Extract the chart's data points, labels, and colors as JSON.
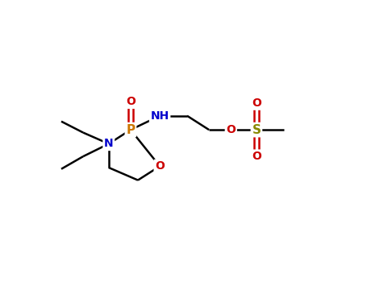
{
  "background_color": "#ffffff",
  "bond_color": "#000000",
  "atom_colors": {
    "P": "#cc7700",
    "N": "#0000cc",
    "O": "#cc0000",
    "S": "#888800"
  },
  "figsize": [
    4.55,
    3.5
  ],
  "dpi": 100,
  "lw": 1.8,
  "fontsize": 10
}
